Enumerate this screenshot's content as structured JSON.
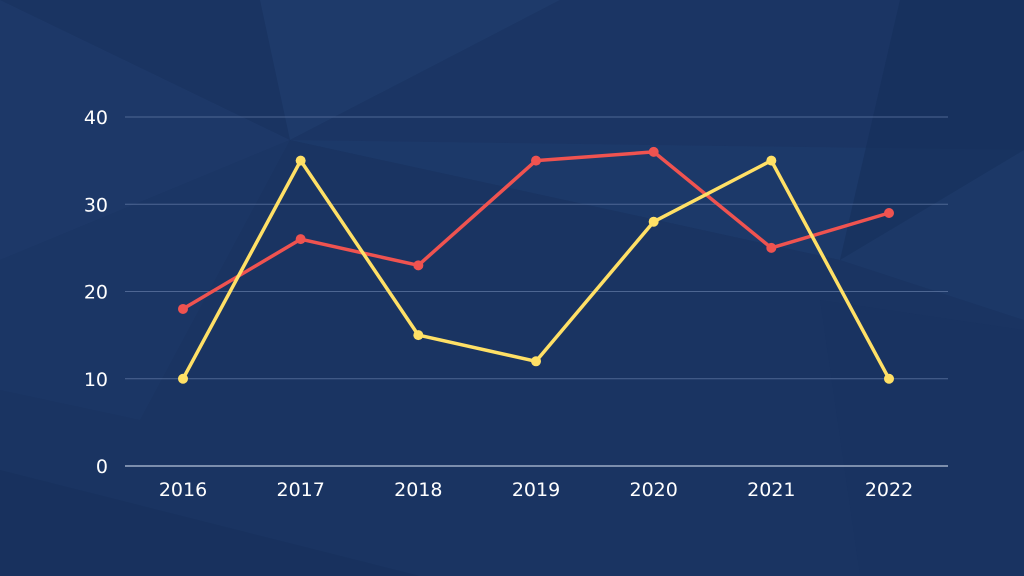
{
  "theme": {
    "background": "#1a3462",
    "text": "#ffffff",
    "grid": "#5f77a3"
  },
  "chart_data": {
    "type": "line",
    "categories": [
      "2016",
      "2017",
      "2018",
      "2019",
      "2020",
      "2021",
      "2022"
    ],
    "series": [
      {
        "color": "#ef5350",
        "values": [
          18,
          26,
          23,
          35,
          36,
          25,
          29
        ]
      },
      {
        "color": "#ffe066",
        "values": [
          10,
          35,
          15,
          12,
          28,
          35,
          10
        ]
      }
    ],
    "ylim": [
      0,
      40
    ],
    "yticks": [
      0,
      10,
      20,
      30,
      40
    ],
    "grid": true,
    "legend": "none",
    "title": "",
    "xlabel": "",
    "ylabel": ""
  }
}
